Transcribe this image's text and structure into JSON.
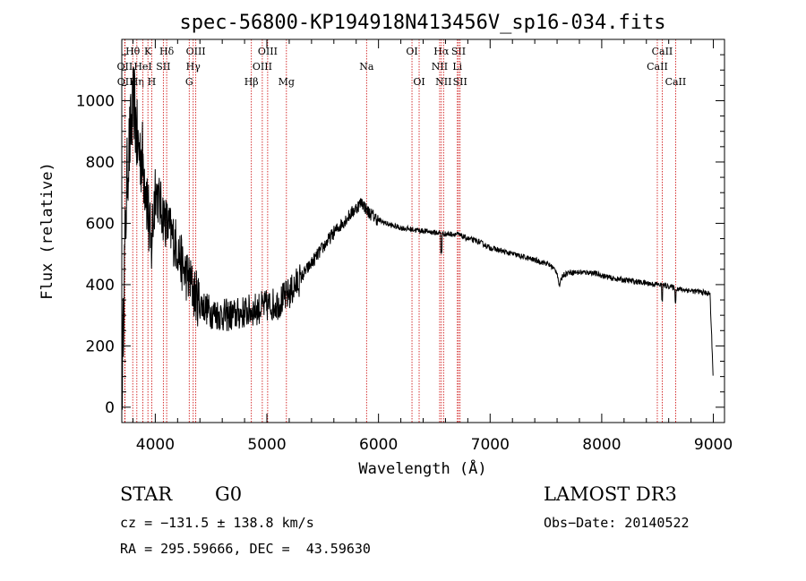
{
  "chart_data": {
    "type": "line",
    "title": "spec-56800-KP194918N413456V_sp16-034.fits",
    "xlabel": "Wavelength (Å)",
    "ylabel": "Flux (relative)",
    "xlim": [
      3700,
      9100
    ],
    "ylim": [
      -50,
      1200
    ],
    "xticks": [
      4000,
      5000,
      6000,
      7000,
      8000,
      9000
    ],
    "yticks": [
      0,
      200,
      400,
      600,
      800,
      1000
    ],
    "xtick_labels": [
      "4000",
      "5000",
      "6000",
      "7000",
      "8000",
      "9000"
    ],
    "ytick_labels": [
      "0",
      "200",
      "400",
      "600",
      "800",
      "1000"
    ],
    "line_color": "#000000",
    "marker_color": "#cc0000",
    "spectrum_anchors": [
      [
        3700,
        0
      ],
      [
        3720,
        420
      ],
      [
        3750,
        780
      ],
      [
        3780,
        900
      ],
      [
        3810,
        1000
      ],
      [
        3840,
        850
      ],
      [
        3880,
        820
      ],
      [
        3920,
        720
      ],
      [
        3960,
        500
      ],
      [
        4000,
        720
      ],
      [
        4050,
        650
      ],
      [
        4100,
        600
      ],
      [
        4150,
        560
      ],
      [
        4200,
        520
      ],
      [
        4250,
        450
      ],
      [
        4300,
        420
      ],
      [
        4340,
        380
      ],
      [
        4400,
        340
      ],
      [
        4500,
        310
      ],
      [
        4600,
        300
      ],
      [
        4700,
        300
      ],
      [
        4800,
        310
      ],
      [
        4900,
        320
      ],
      [
        5000,
        330
      ],
      [
        5100,
        340
      ],
      [
        5200,
        370
      ],
      [
        5300,
        420
      ],
      [
        5400,
        470
      ],
      [
        5500,
        520
      ],
      [
        5600,
        570
      ],
      [
        5700,
        610
      ],
      [
        5800,
        650
      ],
      [
        5850,
        670
      ],
      [
        5900,
        640
      ],
      [
        6000,
        610
      ],
      [
        6100,
        595
      ],
      [
        6200,
        585
      ],
      [
        6300,
        580
      ],
      [
        6400,
        575
      ],
      [
        6500,
        570
      ],
      [
        6600,
        565
      ],
      [
        6700,
        565
      ],
      [
        6800,
        550
      ],
      [
        6900,
        540
      ],
      [
        7000,
        520
      ],
      [
        7100,
        510
      ],
      [
        7200,
        500
      ],
      [
        7300,
        490
      ],
      [
        7400,
        480
      ],
      [
        7500,
        470
      ],
      [
        7550,
        460
      ],
      [
        7600,
        440
      ],
      [
        7620,
        395
      ],
      [
        7650,
        430
      ],
      [
        7700,
        440
      ],
      [
        7800,
        440
      ],
      [
        7900,
        440
      ],
      [
        8000,
        430
      ],
      [
        8100,
        420
      ],
      [
        8200,
        415
      ],
      [
        8300,
        410
      ],
      [
        8400,
        405
      ],
      [
        8500,
        400
      ],
      [
        8600,
        395
      ],
      [
        8700,
        385
      ],
      [
        8800,
        380
      ],
      [
        8900,
        375
      ],
      [
        8970,
        370
      ],
      [
        8990,
        180
      ],
      [
        9000,
        80
      ]
    ],
    "spectral_lines": [
      {
        "name": "OII",
        "wavelength": 3727,
        "row": 2
      },
      {
        "name": "OII",
        "wavelength": 3729,
        "row": 3
      },
      {
        "name": "Hθ",
        "wavelength": 3798,
        "row": 1
      },
      {
        "name": "Hη",
        "wavelength": 3835,
        "row": 3
      },
      {
        "name": "K",
        "wavelength": 3934,
        "row": 1
      },
      {
        "name": "HeI",
        "wavelength": 3889,
        "row": 2
      },
      {
        "name": "H",
        "wavelength": 3968,
        "row": 3
      },
      {
        "name": "SII",
        "wavelength": 4072,
        "row": 2
      },
      {
        "name": "Hδ",
        "wavelength": 4102,
        "row": 1
      },
      {
        "name": "OIII",
        "wavelength": 4363,
        "row": 1
      },
      {
        "name": "Hγ",
        "wavelength": 4340,
        "row": 2
      },
      {
        "name": "G",
        "wavelength": 4304,
        "row": 3
      },
      {
        "name": "Hβ",
        "wavelength": 4861,
        "row": 3
      },
      {
        "name": "OIII",
        "wavelength": 5007,
        "row": 1
      },
      {
        "name": "OIII",
        "wavelength": 4959,
        "row": 2
      },
      {
        "name": "Mg",
        "wavelength": 5175,
        "row": 3
      },
      {
        "name": "Na",
        "wavelength": 5893,
        "row": 2
      },
      {
        "name": "OI",
        "wavelength": 6300,
        "row": 1
      },
      {
        "name": "OI",
        "wavelength": 6364,
        "row": 3
      },
      {
        "name": "Hα",
        "wavelength": 6563,
        "row": 1
      },
      {
        "name": "NII",
        "wavelength": 6548,
        "row": 2
      },
      {
        "name": "NII",
        "wavelength": 6583,
        "row": 3
      },
      {
        "name": "SII",
        "wavelength": 6717,
        "row": 1
      },
      {
        "name": "Li",
        "wavelength": 6707,
        "row": 2
      },
      {
        "name": "SII",
        "wavelength": 6731,
        "row": 3
      },
      {
        "name": "CaII",
        "wavelength": 8542,
        "row": 1
      },
      {
        "name": "CaII",
        "wavelength": 8498,
        "row": 2
      },
      {
        "name": "CaII",
        "wavelength": 8662,
        "row": 3
      }
    ]
  },
  "info": {
    "class": "STAR",
    "subclass": "G0",
    "survey": "LAMOST DR3",
    "cz": "cz = −131.5 ± 138.8 km/s",
    "obs_date": "Obs−Date: 20140522",
    "coords": "RA = 295.59666, DEC =  43.59630"
  }
}
